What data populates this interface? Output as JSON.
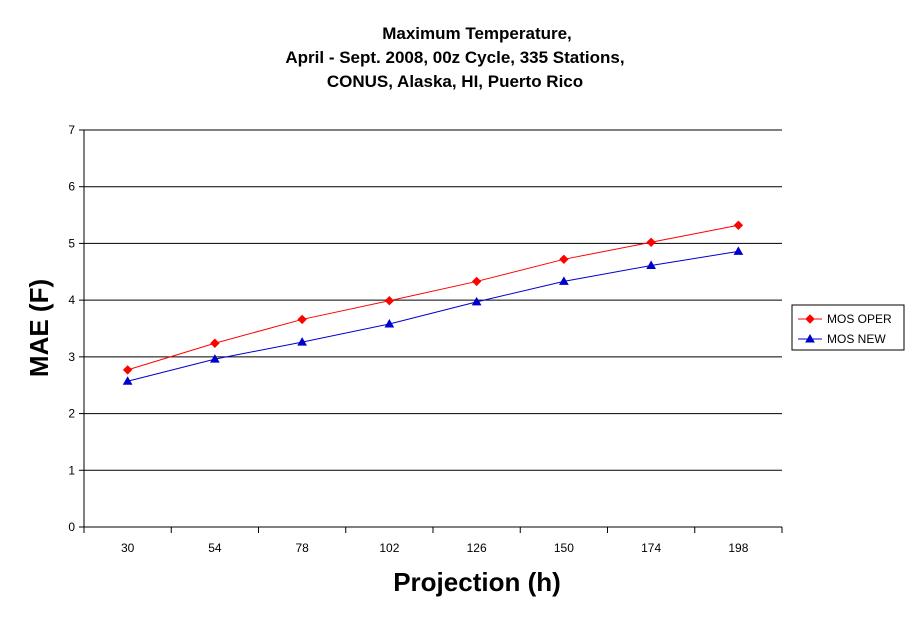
{
  "chart_data": {
    "type": "line",
    "title_lines": [
      "Maximum Temperature,",
      "April - Sept. 2008, 00z Cycle, 335 Stations,",
      "CONUS, Alaska, HI, Puerto Rico"
    ],
    "xlabel": "Projection (h)",
    "ylabel": "MAE (F)",
    "categories": [
      "30",
      "54",
      "78",
      "102",
      "126",
      "150",
      "174",
      "198"
    ],
    "ylim": [
      0,
      7
    ],
    "yticks": [
      "0",
      "1",
      "2",
      "3",
      "4",
      "5",
      "6",
      "7"
    ],
    "grid": "horizontal major gridlines",
    "legend_position": "right",
    "series": [
      {
        "name": "MOS OPER",
        "color": "#ff0000",
        "marker": "diamond",
        "values": [
          2.77,
          3.24,
          3.66,
          3.99,
          4.33,
          4.72,
          5.02,
          5.32
        ]
      },
      {
        "name": "MOS NEW",
        "color": "#0000cc",
        "marker": "triangle",
        "values": [
          2.57,
          2.96,
          3.26,
          3.58,
          3.97,
          4.33,
          4.61,
          4.86
        ]
      }
    ]
  }
}
